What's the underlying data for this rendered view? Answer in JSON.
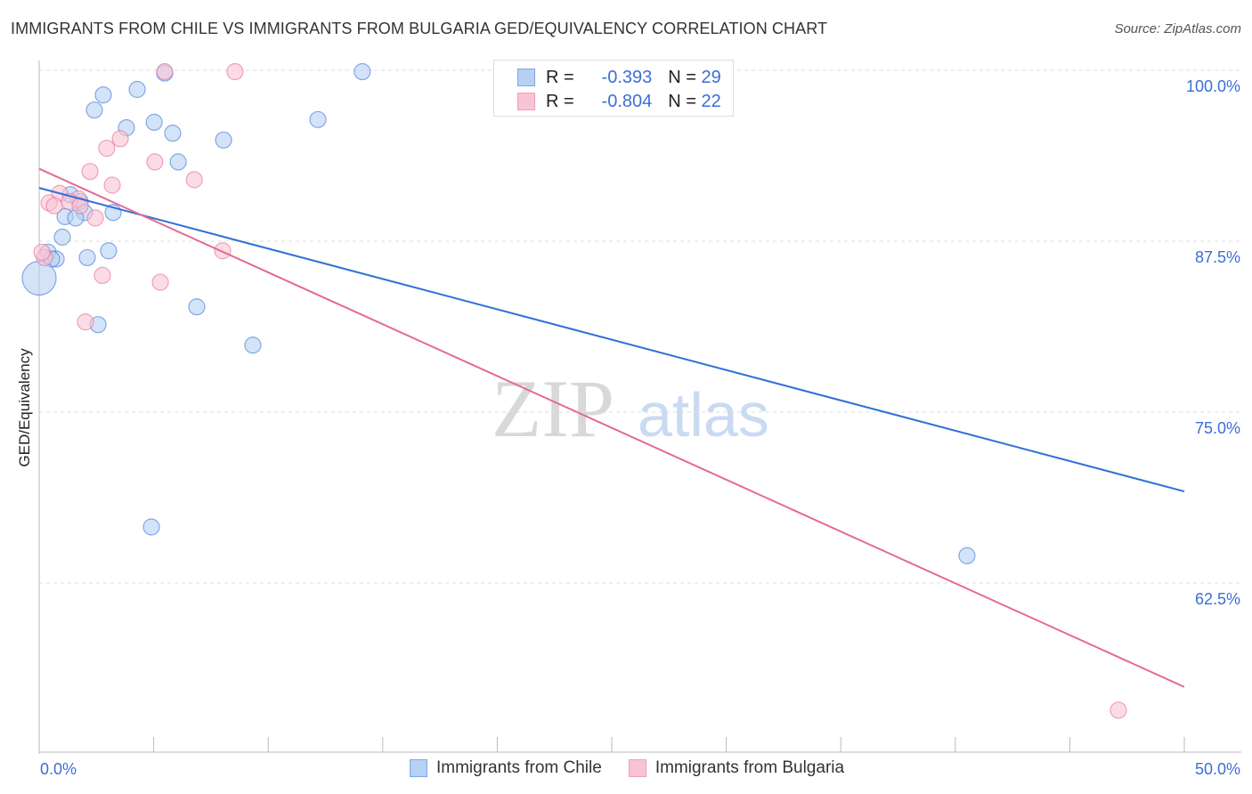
{
  "title": "IMMIGRANTS FROM CHILE VS IMMIGRANTS FROM BULGARIA GED/EQUIVALENCY CORRELATION CHART",
  "source": "Source: ZipAtlas.com",
  "watermark": "ZIPatlas",
  "legend": {
    "rows": [
      {
        "r_label": "R =",
        "r_value": "-0.393",
        "n_label": "N =",
        "n_value": "29"
      },
      {
        "r_label": "R =",
        "r_value": "-0.804",
        "n_label": "N =",
        "n_value": "22"
      }
    ]
  },
  "chart_data": {
    "type": "scatter",
    "title": "IMMIGRANTS FROM CHILE VS IMMIGRANTS FROM BULGARIA GED/EQUIVALENCY CORRELATION CHART",
    "xlabel": "",
    "ylabel": "GED/Equivalency",
    "xlim": [
      0,
      50
    ],
    "ylim": [
      50,
      100
    ],
    "x_tick_labels": [
      "0.0%",
      "50.0%"
    ],
    "y_ticks": [
      100,
      87.5,
      75,
      62.5
    ],
    "y_tick_labels": [
      "100.0%",
      "87.5%",
      "75.0%",
      "62.5%"
    ],
    "grid": true,
    "legend_placement": "top-center",
    "series": [
      {
        "name": "Immigrants from Chile",
        "color": "#3a78d8",
        "fill": "#b7d0f3",
        "points": [
          [
            14.11,
            99.9
          ],
          [
            5.48,
            99.8
          ],
          [
            2.8,
            98.2
          ],
          [
            4.28,
            98.6
          ],
          [
            2.41,
            97.1
          ],
          [
            3.81,
            95.8
          ],
          [
            5.02,
            96.2
          ],
          [
            5.83,
            95.4
          ],
          [
            8.05,
            94.9
          ],
          [
            12.17,
            96.4
          ],
          [
            6.07,
            93.3
          ],
          [
            1.36,
            90.9
          ],
          [
            1.79,
            90.4
          ],
          [
            3.23,
            89.6
          ],
          [
            1.98,
            89.6
          ],
          [
            1.13,
            89.3
          ],
          [
            1.59,
            89.2
          ],
          [
            1.01,
            87.8
          ],
          [
            3.03,
            86.8
          ],
          [
            2.1,
            86.3
          ],
          [
            0.39,
            86.7
          ],
          [
            0.74,
            86.2
          ],
          [
            0.54,
            86.2
          ],
          [
            0.0,
            84.8
          ],
          [
            6.88,
            82.7
          ],
          [
            2.57,
            81.4
          ],
          [
            9.33,
            79.9
          ],
          [
            4.9,
            66.6
          ],
          [
            40.51,
            64.5
          ]
        ],
        "trend": [
          [
            0,
            91.4
          ],
          [
            50,
            69.2
          ]
        ]
      },
      {
        "name": "Immigrants from Bulgaria",
        "color": "#e86a96",
        "fill": "#f8c4d4",
        "points": [
          [
            5.48,
            99.9
          ],
          [
            8.55,
            99.9
          ],
          [
            3.54,
            95.0
          ],
          [
            2.95,
            94.3
          ],
          [
            2.22,
            92.6
          ],
          [
            5.05,
            93.3
          ],
          [
            6.77,
            92.0
          ],
          [
            3.19,
            91.6
          ],
          [
            0.89,
            91.0
          ],
          [
            0.43,
            90.3
          ],
          [
            0.66,
            90.1
          ],
          [
            1.71,
            90.6
          ],
          [
            1.32,
            90.4
          ],
          [
            1.79,
            90.1
          ],
          [
            2.45,
            89.2
          ],
          [
            8.01,
            86.8
          ],
          [
            2.76,
            85.0
          ],
          [
            5.29,
            84.5
          ],
          [
            2.02,
            81.6
          ],
          [
            0.23,
            86.3
          ],
          [
            0.12,
            86.7
          ],
          [
            47.12,
            53.2
          ]
        ],
        "trend": [
          [
            0,
            92.8
          ],
          [
            50,
            54.9
          ]
        ]
      }
    ]
  }
}
